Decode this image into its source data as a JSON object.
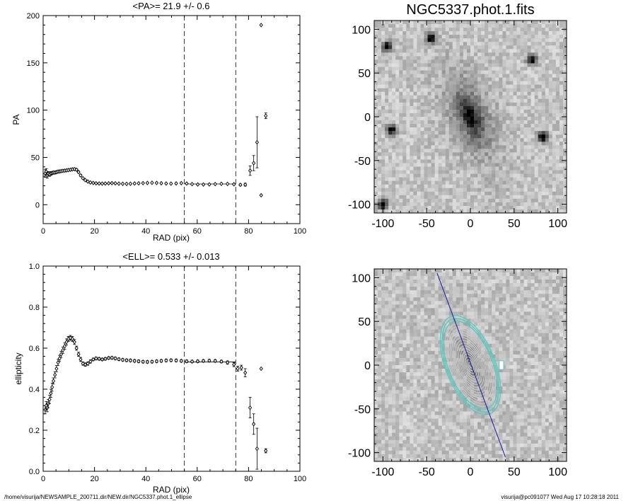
{
  "chart_data": [
    {
      "type": "scatter",
      "title": "<PA>=  21.9 +/-   0.6",
      "xlabel": "RAD (pix)",
      "ylabel": "PA",
      "xlim": [
        0,
        100
      ],
      "ylim": [
        -20,
        200
      ],
      "xticks": [
        0,
        20,
        40,
        60,
        80,
        100
      ],
      "yticks": [
        0,
        50,
        100,
        150,
        200
      ],
      "vlines": [
        55,
        75
      ],
      "mean_line": {
        "y": 21.9,
        "x": [
          55,
          75
        ]
      },
      "points": [
        {
          "x": 0.8,
          "y": 33,
          "e": 4
        },
        {
          "x": 1.2,
          "y": 35,
          "e": 3
        },
        {
          "x": 1.6,
          "y": 31,
          "e": 3
        },
        {
          "x": 2.0,
          "y": 33,
          "e": 2
        },
        {
          "x": 2.5,
          "y": 32,
          "e": 2
        },
        {
          "x": 3.0,
          "y": 33,
          "e": 2
        },
        {
          "x": 3.5,
          "y": 33.5,
          "e": 1.5
        },
        {
          "x": 4.0,
          "y": 34,
          "e": 1.5
        },
        {
          "x": 4.6,
          "y": 34,
          "e": 1.5
        },
        {
          "x": 5.2,
          "y": 34.5,
          "e": 1.2
        },
        {
          "x": 5.8,
          "y": 35,
          "e": 1.2
        },
        {
          "x": 6.4,
          "y": 35.2,
          "e": 1.2
        },
        {
          "x": 7.0,
          "y": 35.5,
          "e": 1
        },
        {
          "x": 7.7,
          "y": 35.8,
          "e": 1
        },
        {
          "x": 8.4,
          "y": 36,
          "e": 1
        },
        {
          "x": 9.1,
          "y": 36.3,
          "e": 1
        },
        {
          "x": 9.8,
          "y": 36.6,
          "e": 1
        },
        {
          "x": 10.6,
          "y": 37,
          "e": 1
        },
        {
          "x": 11.4,
          "y": 37.4,
          "e": 1
        },
        {
          "x": 12.2,
          "y": 37.6,
          "e": 1
        },
        {
          "x": 13.0,
          "y": 37,
          "e": 1
        },
        {
          "x": 13.8,
          "y": 34.5,
          "e": 1
        },
        {
          "x": 14.6,
          "y": 31,
          "e": 1
        },
        {
          "x": 15.5,
          "y": 28,
          "e": 0.8
        },
        {
          "x": 16.4,
          "y": 26,
          "e": 0.8
        },
        {
          "x": 17.4,
          "y": 24.5,
          "e": 0.8
        },
        {
          "x": 18.4,
          "y": 23.5,
          "e": 0.8
        },
        {
          "x": 19.5,
          "y": 23,
          "e": 0.6
        },
        {
          "x": 20.6,
          "y": 22.6,
          "e": 0.6
        },
        {
          "x": 21.8,
          "y": 22.4,
          "e": 0.6
        },
        {
          "x": 23.0,
          "y": 22.3,
          "e": 0.6
        },
        {
          "x": 24.2,
          "y": 22.4,
          "e": 0.6
        },
        {
          "x": 25.5,
          "y": 22.6,
          "e": 0.6
        },
        {
          "x": 26.8,
          "y": 22.8,
          "e": 0.6
        },
        {
          "x": 28.1,
          "y": 22.6,
          "e": 0.6
        },
        {
          "x": 29.5,
          "y": 22.3,
          "e": 0.6
        },
        {
          "x": 31.0,
          "y": 22.1,
          "e": 0.6
        },
        {
          "x": 32.5,
          "y": 22.0,
          "e": 0.6
        },
        {
          "x": 34.0,
          "y": 22.2,
          "e": 0.6
        },
        {
          "x": 35.6,
          "y": 22.4,
          "e": 0.6
        },
        {
          "x": 37.2,
          "y": 22.6,
          "e": 0.6
        },
        {
          "x": 38.9,
          "y": 22.8,
          "e": 0.6
        },
        {
          "x": 40.6,
          "y": 23.0,
          "e": 0.6
        },
        {
          "x": 42.4,
          "y": 23.2,
          "e": 0.6
        },
        {
          "x": 44.2,
          "y": 23.0,
          "e": 0.6
        },
        {
          "x": 46.0,
          "y": 22.7,
          "e": 0.6
        },
        {
          "x": 47.9,
          "y": 22.4,
          "e": 0.6
        },
        {
          "x": 49.8,
          "y": 22.3,
          "e": 0.6
        },
        {
          "x": 51.8,
          "y": 22.5,
          "e": 0.6
        },
        {
          "x": 53.8,
          "y": 22.8,
          "e": 0.6
        },
        {
          "x": 55.9,
          "y": 22.4,
          "e": 0.6
        },
        {
          "x": 58.0,
          "y": 21.8,
          "e": 0.6
        },
        {
          "x": 60.2,
          "y": 21.4,
          "e": 0.6
        },
        {
          "x": 62.4,
          "y": 21.3,
          "e": 0.6
        },
        {
          "x": 64.7,
          "y": 21.5,
          "e": 0.6
        },
        {
          "x": 67.0,
          "y": 21.8,
          "e": 0.6
        },
        {
          "x": 69.4,
          "y": 22.1,
          "e": 0.6
        },
        {
          "x": 71.8,
          "y": 22.0,
          "e": 0.6
        },
        {
          "x": 74.3,
          "y": 21.6,
          "e": 0.8
        },
        {
          "x": 76.8,
          "y": 21.0,
          "e": 1
        },
        {
          "x": 78.7,
          "y": 21.2,
          "e": 1.5
        },
        {
          "x": 80.6,
          "y": 36,
          "e": 5
        },
        {
          "x": 82.0,
          "y": 44,
          "e": 8
        },
        {
          "x": 83.3,
          "y": 66,
          "e": 27
        },
        {
          "x": 84.9,
          "y": 190,
          "e": 0
        },
        {
          "x": 84.9,
          "y": 10,
          "e": 0
        },
        {
          "x": 86.7,
          "y": 94,
          "e": 3
        }
      ]
    },
    {
      "type": "scatter",
      "title": "<ELL>= 0.533 +/-  0.013",
      "xlabel": "RAD (pix)",
      "ylabel": "ellipticity",
      "xlim": [
        0,
        100
      ],
      "ylim": [
        0.0,
        1.0
      ],
      "xticks": [
        0,
        20,
        40,
        60,
        80,
        100
      ],
      "yticks": [
        0.0,
        0.2,
        0.4,
        0.6,
        0.8,
        1.0
      ],
      "vlines": [
        55,
        75
      ],
      "mean_line": {
        "y": 0.533,
        "x": [
          55,
          75
        ]
      },
      "points": [
        {
          "x": 0.8,
          "y": 0.3,
          "e": 0.02
        },
        {
          "x": 1.2,
          "y": 0.32,
          "e": 0.02
        },
        {
          "x": 1.6,
          "y": 0.31,
          "e": 0.02
        },
        {
          "x": 2.0,
          "y": 0.33,
          "e": 0.02
        },
        {
          "x": 2.5,
          "y": 0.35,
          "e": 0.02
        },
        {
          "x": 3.0,
          "y": 0.38,
          "e": 0.02
        },
        {
          "x": 3.5,
          "y": 0.41,
          "e": 0.02
        },
        {
          "x": 4.0,
          "y": 0.44,
          "e": 0.015
        },
        {
          "x": 4.6,
          "y": 0.47,
          "e": 0.015
        },
        {
          "x": 5.2,
          "y": 0.5,
          "e": 0.015
        },
        {
          "x": 5.8,
          "y": 0.53,
          "e": 0.015
        },
        {
          "x": 6.4,
          "y": 0.55,
          "e": 0.015
        },
        {
          "x": 7.0,
          "y": 0.57,
          "e": 0.015
        },
        {
          "x": 7.7,
          "y": 0.59,
          "e": 0.015
        },
        {
          "x": 8.4,
          "y": 0.61,
          "e": 0.015
        },
        {
          "x": 9.1,
          "y": 0.63,
          "e": 0.015
        },
        {
          "x": 9.8,
          "y": 0.645,
          "e": 0.012
        },
        {
          "x": 10.6,
          "y": 0.65,
          "e": 0.012
        },
        {
          "x": 11.4,
          "y": 0.645,
          "e": 0.012
        },
        {
          "x": 12.2,
          "y": 0.63,
          "e": 0.012
        },
        {
          "x": 13.0,
          "y": 0.6,
          "e": 0.01
        },
        {
          "x": 13.8,
          "y": 0.57,
          "e": 0.01
        },
        {
          "x": 14.6,
          "y": 0.545,
          "e": 0.01
        },
        {
          "x": 15.5,
          "y": 0.525,
          "e": 0.008
        },
        {
          "x": 16.4,
          "y": 0.52,
          "e": 0.008
        },
        {
          "x": 17.4,
          "y": 0.525,
          "e": 0.008
        },
        {
          "x": 18.4,
          "y": 0.535,
          "e": 0.008
        },
        {
          "x": 19.5,
          "y": 0.545,
          "e": 0.006
        },
        {
          "x": 20.6,
          "y": 0.55,
          "e": 0.006
        },
        {
          "x": 21.8,
          "y": 0.548,
          "e": 0.006
        },
        {
          "x": 23.0,
          "y": 0.545,
          "e": 0.006
        },
        {
          "x": 24.2,
          "y": 0.548,
          "e": 0.006
        },
        {
          "x": 25.5,
          "y": 0.552,
          "e": 0.006
        },
        {
          "x": 26.8,
          "y": 0.553,
          "e": 0.006
        },
        {
          "x": 28.1,
          "y": 0.55,
          "e": 0.006
        },
        {
          "x": 29.5,
          "y": 0.546,
          "e": 0.006
        },
        {
          "x": 31.0,
          "y": 0.543,
          "e": 0.006
        },
        {
          "x": 32.5,
          "y": 0.541,
          "e": 0.006
        },
        {
          "x": 34.0,
          "y": 0.54,
          "e": 0.006
        },
        {
          "x": 35.6,
          "y": 0.538,
          "e": 0.006
        },
        {
          "x": 37.2,
          "y": 0.536,
          "e": 0.006
        },
        {
          "x": 38.9,
          "y": 0.534,
          "e": 0.006
        },
        {
          "x": 40.6,
          "y": 0.533,
          "e": 0.006
        },
        {
          "x": 42.4,
          "y": 0.534,
          "e": 0.006
        },
        {
          "x": 44.2,
          "y": 0.536,
          "e": 0.006
        },
        {
          "x": 46.0,
          "y": 0.538,
          "e": 0.006
        },
        {
          "x": 47.9,
          "y": 0.54,
          "e": 0.006
        },
        {
          "x": 49.8,
          "y": 0.541,
          "e": 0.006
        },
        {
          "x": 51.8,
          "y": 0.54,
          "e": 0.006
        },
        {
          "x": 53.8,
          "y": 0.538,
          "e": 0.006
        },
        {
          "x": 55.9,
          "y": 0.536,
          "e": 0.006
        },
        {
          "x": 58.0,
          "y": 0.535,
          "e": 0.006
        },
        {
          "x": 60.2,
          "y": 0.536,
          "e": 0.006
        },
        {
          "x": 62.4,
          "y": 0.538,
          "e": 0.006
        },
        {
          "x": 64.7,
          "y": 0.539,
          "e": 0.006
        },
        {
          "x": 67.0,
          "y": 0.538,
          "e": 0.006
        },
        {
          "x": 69.4,
          "y": 0.535,
          "e": 0.006
        },
        {
          "x": 71.8,
          "y": 0.53,
          "e": 0.008
        },
        {
          "x": 74.3,
          "y": 0.52,
          "e": 0.01
        },
        {
          "x": 75.8,
          "y": 0.5,
          "e": 0.012
        },
        {
          "x": 77.2,
          "y": 0.505,
          "e": 0.012
        },
        {
          "x": 78.7,
          "y": 0.48,
          "e": 0.02
        },
        {
          "x": 80.6,
          "y": 0.31,
          "e": 0.05
        },
        {
          "x": 82.0,
          "y": 0.23,
          "e": 0.05
        },
        {
          "x": 83.3,
          "y": 0.11,
          "e": 0.1
        },
        {
          "x": 84.9,
          "y": 0.5,
          "e": 0
        },
        {
          "x": 86.7,
          "y": 0.1,
          "e": 0.01
        }
      ]
    },
    {
      "type": "heatmap",
      "title": "NGC5337.phot.1.fits",
      "xlim": [
        -110,
        110
      ],
      "ylim": [
        -110,
        110
      ],
      "xticks": [
        -100,
        -50,
        0,
        50,
        100
      ],
      "yticks": [
        -100,
        -50,
        0,
        50,
        100
      ],
      "galaxy": {
        "center": [
          0,
          0
        ],
        "pa_deg": 22,
        "semi_major": 55,
        "ellipticity": 0.53
      },
      "stars": [
        [
          -100,
          -100
        ],
        [
          83,
          -23
        ],
        [
          -90,
          -15
        ],
        [
          -45,
          90
        ],
        [
          70,
          65
        ],
        [
          -95,
          80
        ]
      ]
    },
    {
      "type": "heatmap",
      "xlim": [
        -110,
        110
      ],
      "ylim": [
        -110,
        110
      ],
      "xticks": [
        -100,
        -50,
        0,
        50,
        100
      ],
      "yticks": [
        -100,
        -50,
        0,
        50,
        100
      ],
      "isophotes": {
        "count": 18,
        "outer_semi_major": 60,
        "ellipticity": 0.53,
        "pa_deg": 22
      },
      "major_axis_line": {
        "from": [
          -38,
          105
        ],
        "to": [
          40,
          -105
        ]
      },
      "mask_box": {
        "x": [
          33,
          38
        ],
        "y": [
          -5,
          5
        ]
      },
      "colors": {
        "isophote": "#c8c8c8",
        "outer_isophote": "#5fc8c0",
        "axis_line": "#1a1aa0"
      }
    }
  ],
  "footer": {
    "left": "/home/visurija/NEWSAMPLE_200711.dir/NEW.dir/NGC5337.phot.1_ellipse",
    "right": "visurija@pc091077  Wed Aug 17 10:28:18 2011"
  }
}
